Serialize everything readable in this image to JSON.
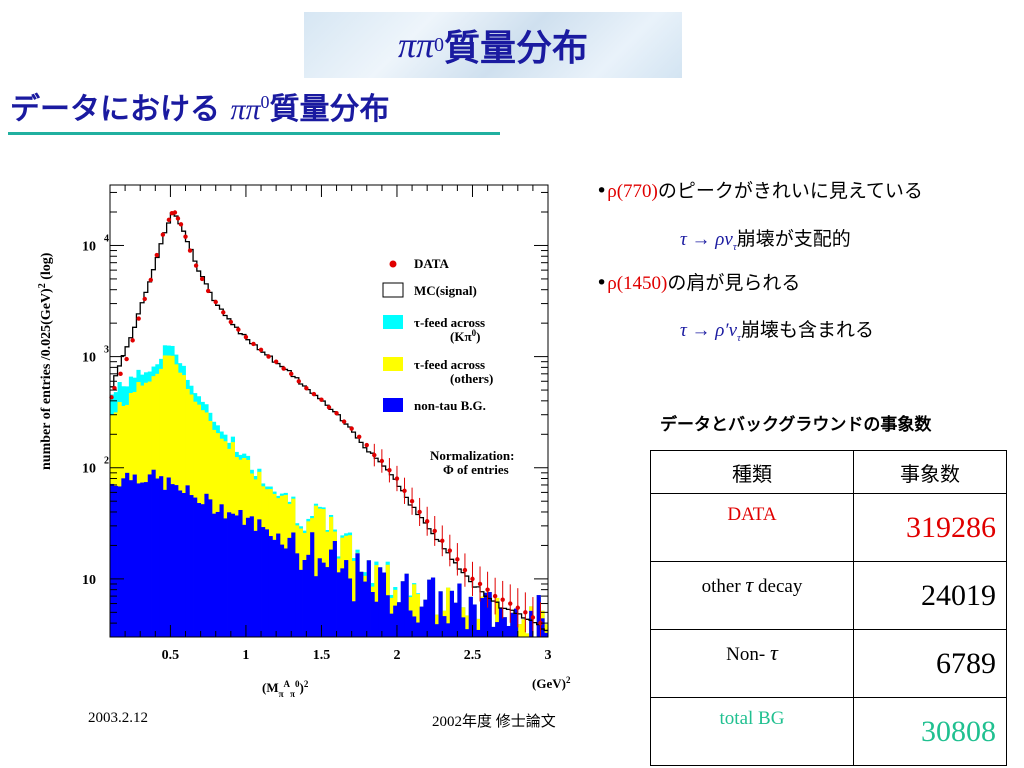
{
  "slide": {
    "title_math": "ππ",
    "title_sup": "0",
    "title_text": " 質量分布",
    "subtitle_pre": "データにおける ",
    "subtitle_math": "ππ",
    "subtitle_sup": "0",
    "subtitle_post": "質量分布",
    "footer_left": "2003.2.12",
    "footer_right": "2002年度 修士論文"
  },
  "bullets": [
    {
      "marker": "•",
      "highlight": "ρ(770)",
      "text": "のピークがきれいに見えている"
    },
    {
      "math": "τ → ρν",
      "sub": "τ",
      "text": "崩壊が支配的"
    },
    {
      "marker": "•",
      "highlight": "ρ(1450)",
      "text": "の肩が見られる"
    },
    {
      "math": "τ → ρ′ν",
      "sub": "τ",
      "text": "崩壊も含まれる"
    }
  ],
  "table": {
    "title": "データとバックグラウンドの事象数",
    "headers": [
      "種類",
      "事象数"
    ],
    "rows": [
      {
        "label": "DATA",
        "value": "319286",
        "color": "#e00000"
      },
      {
        "label_pre": "other  ",
        "label_math": "τ",
        "label_post": "  decay",
        "value": "24019",
        "color": "#000000"
      },
      {
        "label_pre": "Non- ",
        "label_math": "τ",
        "label_post": "",
        "value": "6789",
        "color": "#000000"
      },
      {
        "label": "total  BG",
        "value": "30808",
        "color": "#20c090"
      }
    ]
  },
  "chart_data": {
    "type": "histogram",
    "log_y": true,
    "xlim": [
      0.1,
      3.0
    ],
    "ylim": [
      3,
      35000
    ],
    "ylabel": "number of entries  /0.025(GeV)",
    "ylabel_sup": "2",
    "ylabel_suffix": "  (log)",
    "xlabel": "(M",
    "xlabel_sub1": "π",
    "xlabel_sup1": "A",
    "xlabel_sub2": "π",
    "xlabel_sup2": "0",
    "xlabel_close": ")",
    "xlabel_sq": "2",
    "xunit": "(GeV)",
    "xunit_sup": "2",
    "xticks": [
      {
        "v": 0.5,
        "label": "0.5"
      },
      {
        "v": 1.0,
        "label": "1"
      },
      {
        "v": 1.5,
        "label": "1.5"
      },
      {
        "v": 2.0,
        "label": "2"
      },
      {
        "v": 2.5,
        "label": "2.5"
      },
      {
        "v": 3.0,
        "label": "3"
      }
    ],
    "yticks": [
      {
        "v": 10,
        "base": "10",
        "exp": ""
      },
      {
        "v": 100,
        "base": "10",
        "exp": "2"
      },
      {
        "v": 1000,
        "base": "10",
        "exp": "3"
      },
      {
        "v": 10000,
        "base": "10",
        "exp": "4"
      }
    ],
    "legend": [
      {
        "kind": "dot",
        "color": "#e00000",
        "label": "DATA"
      },
      {
        "kind": "box",
        "color": "#ffffff",
        "label": "MC(signal)"
      },
      {
        "kind": "box",
        "color": "#00ffff",
        "label": "τ-feed across",
        "label2": "(Kπ",
        "label2_sup": "0",
        "label2_close": ")"
      },
      {
        "kind": "box",
        "color": "#ffff00",
        "label": "τ-feed across",
        "label2": "(others)"
      },
      {
        "kind": "box",
        "color": "#0000ff",
        "label": "non-tau B.G."
      }
    ],
    "note_line1": "Normalization:",
    "note_line2": "Φ of entries",
    "mc_signal_knots": [
      [
        0.1,
        500
      ],
      [
        0.2,
        1100
      ],
      [
        0.3,
        2600
      ],
      [
        0.4,
        7000
      ],
      [
        0.45,
        12000
      ],
      [
        0.5,
        18000
      ],
      [
        0.52,
        20000
      ],
      [
        0.55,
        18000
      ],
      [
        0.6,
        12000
      ],
      [
        0.7,
        5500
      ],
      [
        0.8,
        3000
      ],
      [
        0.9,
        2000
      ],
      [
        1.0,
        1500
      ],
      [
        1.1,
        1150
      ],
      [
        1.2,
        900
      ],
      [
        1.3,
        700
      ],
      [
        1.4,
        520
      ],
      [
        1.5,
        400
      ],
      [
        1.6,
        300
      ],
      [
        1.7,
        220
      ],
      [
        1.8,
        150
      ],
      [
        1.9,
        110
      ],
      [
        2.0,
        75
      ],
      [
        2.1,
        45
      ],
      [
        2.2,
        30
      ],
      [
        2.3,
        20
      ],
      [
        2.4,
        13
      ],
      [
        2.5,
        9
      ],
      [
        2.6,
        7
      ],
      [
        2.7,
        5.5
      ],
      [
        2.8,
        5
      ],
      [
        2.9,
        4
      ],
      [
        3.0,
        3.5
      ]
    ],
    "cyan_knots": [
      [
        0.1,
        430
      ],
      [
        0.2,
        600
      ],
      [
        0.3,
        680
      ],
      [
        0.4,
        850
      ],
      [
        0.45,
        1050
      ],
      [
        0.5,
        1350
      ],
      [
        0.55,
        1100
      ],
      [
        0.6,
        700
      ],
      [
        0.7,
        380
      ],
      [
        0.8,
        260
      ],
      [
        0.9,
        180
      ],
      [
        1.0,
        120
      ],
      [
        1.1,
        85
      ],
      [
        1.2,
        65
      ],
      [
        1.3,
        50
      ],
      [
        1.4,
        40
      ],
      [
        1.5,
        30
      ],
      [
        1.6,
        24
      ],
      [
        1.7,
        18
      ],
      [
        1.8,
        13
      ],
      [
        2.0,
        9
      ],
      [
        2.2,
        6.5
      ],
      [
        2.5,
        5
      ],
      [
        2.8,
        4
      ],
      [
        3.0,
        3.5
      ]
    ],
    "yellow_knots": [
      [
        0.1,
        280
      ],
      [
        0.2,
        400
      ],
      [
        0.3,
        540
      ],
      [
        0.4,
        700
      ],
      [
        0.45,
        850
      ],
      [
        0.5,
        1100
      ],
      [
        0.55,
        900
      ],
      [
        0.6,
        580
      ],
      [
        0.7,
        320
      ],
      [
        0.8,
        220
      ],
      [
        0.9,
        160
      ],
      [
        1.0,
        110
      ],
      [
        1.1,
        80
      ],
      [
        1.2,
        62
      ],
      [
        1.3,
        48
      ],
      [
        1.4,
        38
      ],
      [
        1.5,
        29
      ],
      [
        1.6,
        23
      ],
      [
        1.7,
        17
      ],
      [
        1.8,
        12
      ],
      [
        2.0,
        8.5
      ],
      [
        2.2,
        6.5
      ],
      [
        2.5,
        5
      ],
      [
        2.8,
        4
      ],
      [
        3.0,
        3.5
      ]
    ],
    "blue_knots": [
      [
        0.1,
        70
      ],
      [
        0.2,
        85
      ],
      [
        0.3,
        85
      ],
      [
        0.4,
        80
      ],
      [
        0.5,
        70
      ],
      [
        0.6,
        60
      ],
      [
        0.7,
        52
      ],
      [
        0.8,
        45
      ],
      [
        0.9,
        40
      ],
      [
        1.0,
        34
      ],
      [
        1.1,
        30
      ],
      [
        1.2,
        25
      ],
      [
        1.3,
        21
      ],
      [
        1.4,
        18
      ],
      [
        1.5,
        15
      ],
      [
        1.6,
        12.5
      ],
      [
        1.7,
        10.5
      ],
      [
        1.8,
        9
      ],
      [
        1.9,
        8
      ],
      [
        2.0,
        7.5
      ],
      [
        2.2,
        6.5
      ],
      [
        2.4,
        5.5
      ],
      [
        2.6,
        5
      ],
      [
        2.8,
        4.5
      ],
      [
        3.0,
        4
      ]
    ],
    "data_points": [
      [
        0.11,
        430
      ],
      [
        0.13,
        520
      ],
      [
        0.17,
        700
      ],
      [
        0.21,
        950
      ],
      [
        0.25,
        1400
      ],
      [
        0.29,
        2200
      ],
      [
        0.33,
        3300
      ],
      [
        0.37,
        4900
      ],
      [
        0.41,
        8200
      ],
      [
        0.45,
        12500
      ],
      [
        0.49,
        17000
      ],
      [
        0.51,
        19500
      ],
      [
        0.53,
        19800
      ],
      [
        0.55,
        17500
      ],
      [
        0.57,
        15500
      ],
      [
        0.6,
        12000
      ],
      [
        0.63,
        9000
      ],
      [
        0.67,
        6600
      ],
      [
        0.71,
        5000
      ],
      [
        0.75,
        3900
      ],
      [
        0.8,
        3100
      ],
      [
        0.85,
        2500
      ],
      [
        0.9,
        2050
      ],
      [
        0.95,
        1750
      ],
      [
        1.0,
        1500
      ],
      [
        1.05,
        1300
      ],
      [
        1.1,
        1150
      ],
      [
        1.15,
        1000
      ],
      [
        1.2,
        900
      ],
      [
        1.25,
        780
      ],
      [
        1.3,
        700
      ],
      [
        1.35,
        600
      ],
      [
        1.4,
        520
      ],
      [
        1.45,
        460
      ],
      [
        1.5,
        410
      ],
      [
        1.55,
        350
      ],
      [
        1.6,
        310
      ],
      [
        1.65,
        260
      ],
      [
        1.7,
        225
      ],
      [
        1.75,
        190
      ],
      [
        1.8,
        160
      ],
      [
        1.85,
        130
      ],
      [
        1.9,
        115
      ],
      [
        1.95,
        95
      ],
      [
        2.0,
        80
      ],
      [
        2.05,
        62
      ],
      [
        2.1,
        50
      ],
      [
        2.15,
        40
      ],
      [
        2.2,
        33
      ],
      [
        2.25,
        27
      ],
      [
        2.3,
        22
      ],
      [
        2.35,
        18
      ],
      [
        2.4,
        15
      ],
      [
        2.45,
        12
      ],
      [
        2.5,
        10
      ],
      [
        2.55,
        9
      ],
      [
        2.6,
        8
      ],
      [
        2.65,
        7
      ],
      [
        2.7,
        6.5
      ],
      [
        2.75,
        6
      ],
      [
        2.8,
        5.5
      ],
      [
        2.85,
        5
      ],
      [
        2.9,
        4.5
      ],
      [
        2.95,
        4
      ]
    ]
  }
}
